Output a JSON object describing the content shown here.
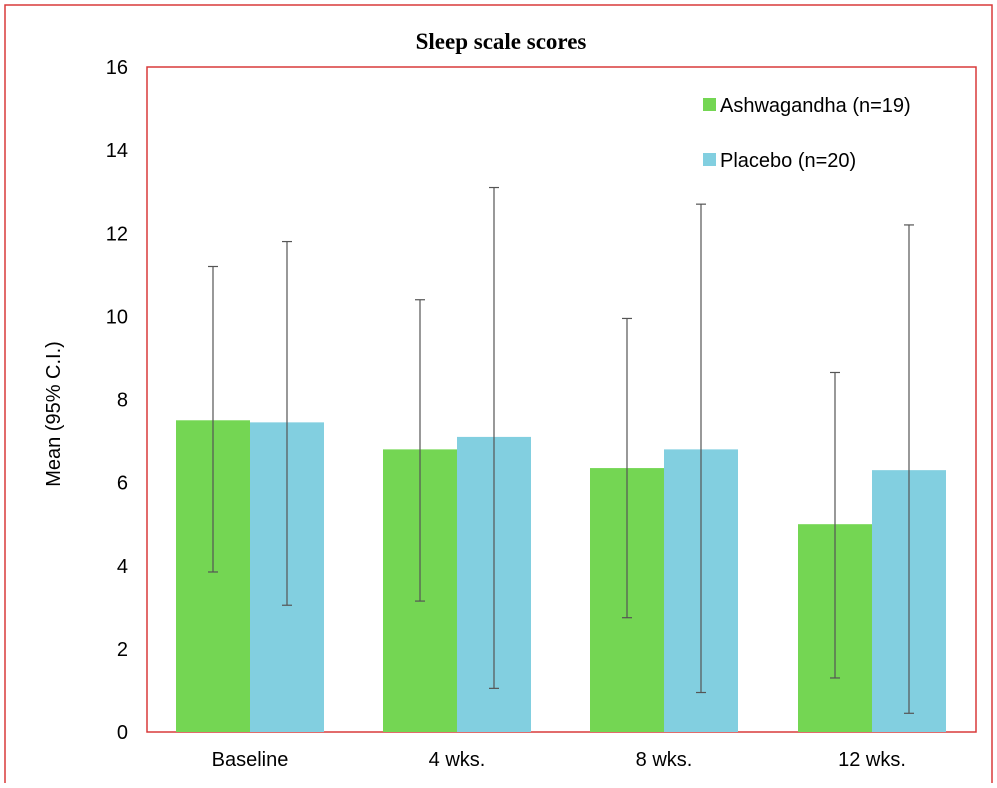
{
  "chart_data": {
    "type": "bar",
    "title": "Sleep scale scores",
    "xlabel": "",
    "ylabel": "Mean (95% C.I.)",
    "ylim": [
      0,
      16
    ],
    "yticks": [
      "0",
      "2",
      "4",
      "6",
      "8",
      "10",
      "12",
      "14",
      "16"
    ],
    "categories": [
      "Baseline",
      "4 wks.",
      "8 wks.",
      "12 wks."
    ],
    "series": [
      {
        "name": "Ashwagandha (n=19)",
        "color": "#74d653",
        "values": [
          7.5,
          6.8,
          6.35,
          5.0
        ],
        "ci_low": [
          3.85,
          3.15,
          2.75,
          1.3
        ],
        "ci_high": [
          11.2,
          10.4,
          9.95,
          8.65
        ]
      },
      {
        "name": "Placebo (n=20)",
        "color": "#82cfe0",
        "values": [
          7.45,
          7.1,
          6.8,
          6.3
        ],
        "ci_low": [
          3.05,
          1.05,
          0.95,
          0.45
        ],
        "ci_high": [
          11.8,
          13.1,
          12.7,
          12.2
        ]
      }
    ],
    "grid": false,
    "legend_position": "top-right",
    "frame_color": "#d93a3a",
    "errorbar_color": "#555555"
  }
}
